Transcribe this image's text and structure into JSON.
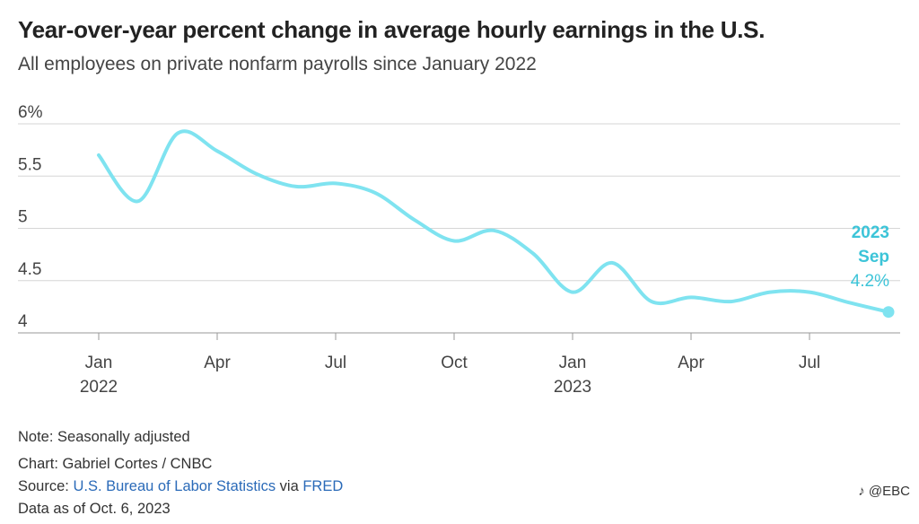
{
  "title": "Year-over-year percent change in average hourly earnings in the U.S.",
  "subtitle": "All employees on private nonfarm payrolls since January 2022",
  "chart_data": {
    "type": "line",
    "series": [
      {
        "values": [
          {
            "x": "2022-01",
            "y": 5.7
          },
          {
            "x": "2022-02",
            "y": 5.26
          },
          {
            "x": "2022-03",
            "y": 5.91
          },
          {
            "x": "2022-04",
            "y": 5.74
          },
          {
            "x": "2022-05",
            "y": 5.52
          },
          {
            "x": "2022-06",
            "y": 5.4
          },
          {
            "x": "2022-07",
            "y": 5.43
          },
          {
            "x": "2022-08",
            "y": 5.34
          },
          {
            "x": "2022-09",
            "y": 5.08
          },
          {
            "x": "2022-10",
            "y": 4.88
          },
          {
            "x": "2022-11",
            "y": 4.98
          },
          {
            "x": "2022-12",
            "y": 4.76
          },
          {
            "x": "2023-01",
            "y": 4.39
          },
          {
            "x": "2023-02",
            "y": 4.67
          },
          {
            "x": "2023-03",
            "y": 4.3
          },
          {
            "x": "2023-04",
            "y": 4.34
          },
          {
            "x": "2023-05",
            "y": 4.3
          },
          {
            "x": "2023-06",
            "y": 4.39
          },
          {
            "x": "2023-07",
            "y": 4.39
          },
          {
            "x": "2023-08",
            "y": 4.29
          },
          {
            "x": "2023-09",
            "y": 4.2
          }
        ],
        "color": "#7fe3f0"
      }
    ],
    "y_ticks": [
      {
        "value": 6,
        "label": "6%"
      },
      {
        "value": 5.5,
        "label": "5.5"
      },
      {
        "value": 5,
        "label": "5"
      },
      {
        "value": 4.5,
        "label": "4.5"
      },
      {
        "value": 4,
        "label": "4"
      }
    ],
    "x_ticks": [
      {
        "x": "2022-01",
        "label": "Jan",
        "sublabel": "2022"
      },
      {
        "x": "2022-04",
        "label": "Apr",
        "sublabel": ""
      },
      {
        "x": "2022-07",
        "label": "Jul",
        "sublabel": ""
      },
      {
        "x": "2022-10",
        "label": "Oct",
        "sublabel": ""
      },
      {
        "x": "2023-01",
        "label": "Jan",
        "sublabel": "2023"
      },
      {
        "x": "2023-04",
        "label": "Apr",
        "sublabel": ""
      },
      {
        "x": "2023-07",
        "label": "Jul",
        "sublabel": ""
      }
    ],
    "ylim": [
      4,
      6
    ],
    "xlim": [
      "2022-01",
      "2023-09"
    ],
    "grid": true,
    "annotation": {
      "x": "2023-09",
      "y": 4.2,
      "line1": "2023",
      "line2": "Sep",
      "line3": "4.2%",
      "color": "#3cc4d8"
    }
  },
  "footer": {
    "note": "Note: Seasonally adjusted",
    "chart_credit": "Chart: Gabriel Cortes / CNBC",
    "source_prefix": "Source: ",
    "source_link1": "U.S. Bureau of Labor Statistics",
    "source_via": " via ",
    "source_link2": "FRED",
    "data_as_of": "Data as of Oct. 6, 2023"
  },
  "watermark": "@EBC",
  "watermark_icon": "tiktok-logo-icon"
}
